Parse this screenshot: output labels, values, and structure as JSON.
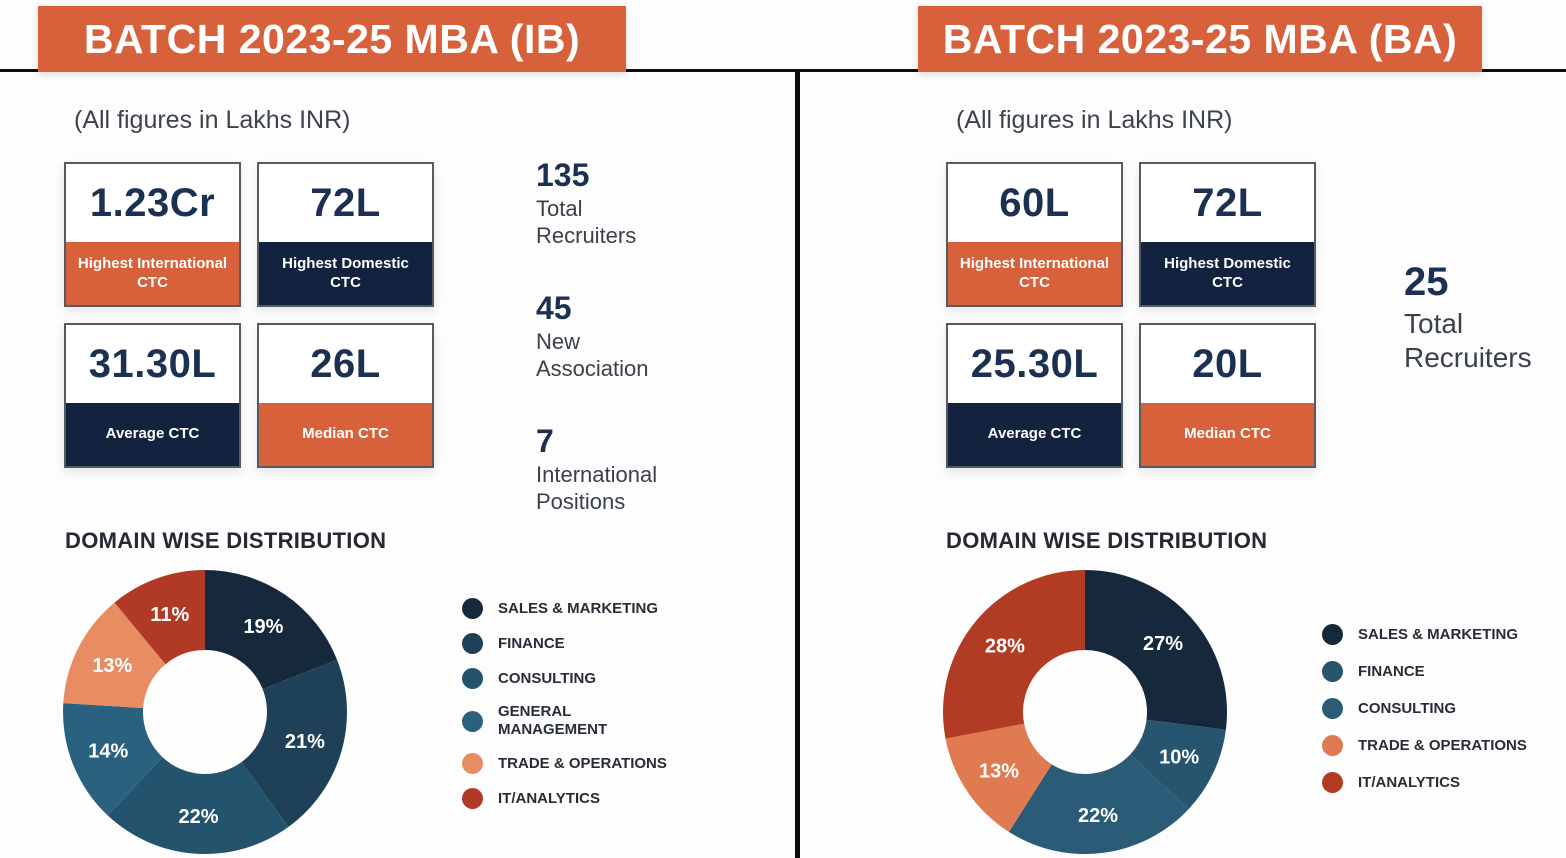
{
  "colors": {
    "orange": "#d7613b",
    "navy": "#13233f",
    "value_navy": "#1c3152",
    "line_black": "#0d0d0d",
    "background": "#fdfdfd"
  },
  "left": {
    "title": "BATCH 2023-25 MBA (IB)",
    "note": "(All figures in Lakhs INR)",
    "cards": [
      {
        "value": "1.23Cr",
        "label": "Highest International CTC",
        "accent": "orange"
      },
      {
        "value": "72L",
        "label": "Highest Domestic CTC",
        "accent": "navy"
      },
      {
        "value": "31.30L",
        "label": "Average CTC",
        "accent": "navy"
      },
      {
        "value": "26L",
        "label": "Median CTC",
        "accent": "orange"
      }
    ],
    "stats": [
      {
        "value": "135",
        "label": "Total Recruiters"
      },
      {
        "value": "45",
        "label": "New Association"
      },
      {
        "value": "7",
        "label": "International Positions"
      }
    ],
    "chart_title": "DOMAIN WISE DISTRIBUTION",
    "legend_items": [
      [
        "SALES & MARKETING"
      ],
      [
        "FINANCE"
      ],
      [
        "CONSULTING"
      ],
      [
        "GENERAL",
        "MANAGEMENT"
      ],
      [
        "TRADE & OPERATIONS"
      ],
      [
        "IT/ANALYTICS"
      ]
    ]
  },
  "right": {
    "title": "BATCH 2023-25 MBA (BA)",
    "note": "(All figures in Lakhs INR)",
    "cards": [
      {
        "value": "60L",
        "label": "Highest International CTC",
        "accent": "orange"
      },
      {
        "value": "72L",
        "label": "Highest Domestic CTC",
        "accent": "navy"
      },
      {
        "value": "25.30L",
        "label": "Average CTC",
        "accent": "navy"
      },
      {
        "value": "20L",
        "label": "Median CTC",
        "accent": "orange"
      }
    ],
    "stats": [
      {
        "value": "25",
        "label": "Total Recruiters"
      }
    ],
    "chart_title": "DOMAIN WISE DISTRIBUTION",
    "legend_items": [
      [
        "SALES & MARKETING"
      ],
      [
        "FINANCE"
      ],
      [
        "CONSULTING"
      ],
      [
        "TRADE & OPERATIONS"
      ],
      [
        "IT/ANALYTICS"
      ]
    ]
  },
  "chart_data": [
    {
      "type": "pie",
      "variant": "donut",
      "panel": "BATCH 2023-25 MBA (IB)",
      "title": "DOMAIN WISE DISTRIBUTION",
      "categories": [
        "SALES & MARKETING",
        "FINANCE",
        "CONSULTING",
        "GENERAL MANAGEMENT",
        "TRADE & OPERATIONS",
        "IT/ANALYTICS"
      ],
      "values": [
        19,
        21,
        22,
        14,
        13,
        11
      ],
      "unit": "%",
      "colors": [
        "#16293c",
        "#1e4157",
        "#24536d",
        "#2a617f",
        "#e88c62",
        "#b03a25"
      ],
      "start_angle": "top",
      "direction": "clockwise",
      "inner_radius_ratio": 0.44,
      "legend_position": "right",
      "labels_on_slices": true
    },
    {
      "type": "pie",
      "variant": "donut",
      "panel": "BATCH 2023-25 MBA (BA)",
      "title": "DOMAIN WISE DISTRIBUTION",
      "categories": [
        "SALES & MARKETING",
        "FINANCE",
        "CONSULTING",
        "TRADE & OPERATIONS",
        "IT/ANALYTICS"
      ],
      "values": [
        27,
        10,
        22,
        13,
        28
      ],
      "unit": "%",
      "colors": [
        "#16293c",
        "#27546e",
        "#2a5b77",
        "#e07a50",
        "#b23b24"
      ],
      "start_angle": "top",
      "direction": "clockwise",
      "inner_radius_ratio": 0.44,
      "legend_position": "right",
      "labels_on_slices": true
    }
  ]
}
